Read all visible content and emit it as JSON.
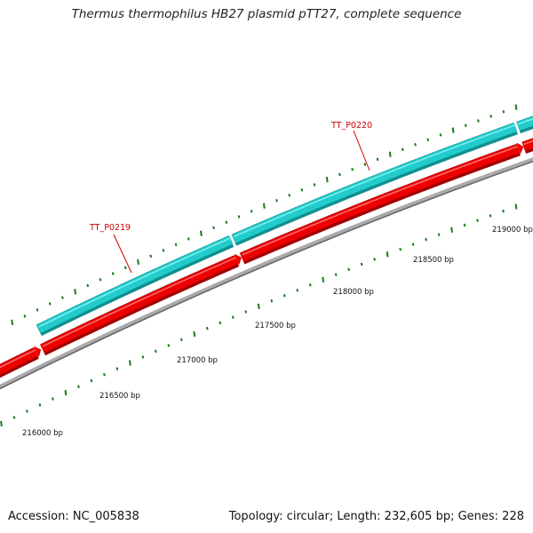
{
  "title": "Thermus thermophilus HB27 plasmid pTT27, complete sequence",
  "footer": {
    "accession": "Accession: NC_005838",
    "summary": "Topology: circular; Length: 232,605 bp; Genes: 228"
  },
  "colors": {
    "cyan_feature": "#22cccc",
    "red_feature": "#ee0000",
    "backbone": "#888888",
    "tick_green": "#1a7a1a",
    "gene_label": "#cc0000"
  },
  "bp_labels": [
    {
      "text": "216000 bp"
    },
    {
      "text": "216500 bp"
    },
    {
      "text": "217000 bp"
    },
    {
      "text": "217500 bp"
    },
    {
      "text": "218000 bp"
    },
    {
      "text": "218500 bp"
    },
    {
      "text": "219000 bp"
    }
  ],
  "gene_labels": [
    {
      "text": "TT_P0219"
    },
    {
      "text": "TT_P0220"
    }
  ]
}
